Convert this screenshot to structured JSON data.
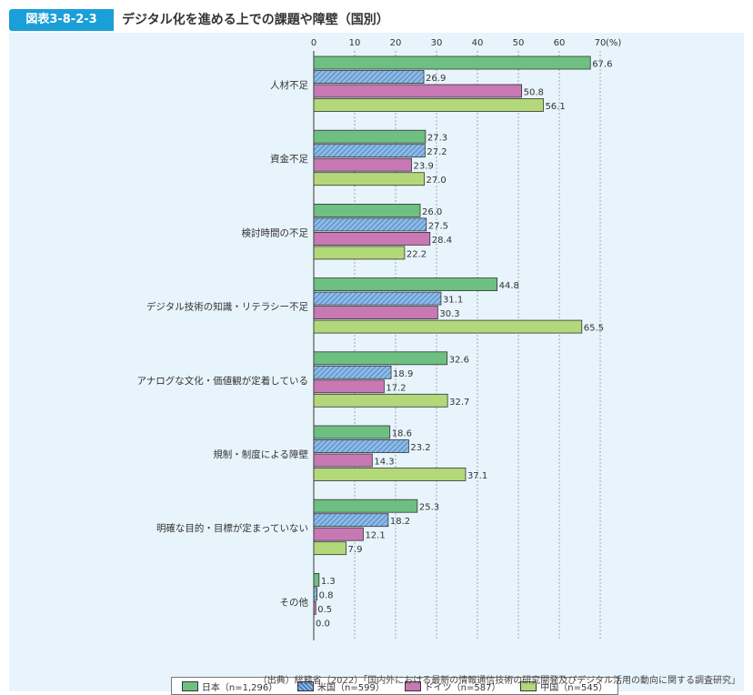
{
  "header": {
    "figure_label": "図表3-8-2-3",
    "title": "デジタル化を進める上での課題や障壁（国別）"
  },
  "chart_data": {
    "type": "bar",
    "orientation": "horizontal",
    "unit_label": "(%)",
    "xlim": [
      0,
      70
    ],
    "xticks": [
      0,
      10,
      20,
      30,
      40,
      50,
      60,
      70
    ],
    "grid": true,
    "legend_position": "bottom",
    "categories": [
      "人材不足",
      "資金不足",
      "検討時間の不足",
      "デジタル技術の知識・リテラシー不足",
      "アナログな文化・価値観が定着している",
      "規制・制度による障壁",
      "明確な目的・目標が定まっていない",
      "その他"
    ],
    "series": [
      {
        "name": "日本（n=1,296）",
        "color": "#6dc082",
        "pattern": "solid",
        "values": [
          67.6,
          27.3,
          26.0,
          44.8,
          32.6,
          18.6,
          25.3,
          1.3
        ]
      },
      {
        "name": "米国（n=599）",
        "color": "#6fa8dc",
        "pattern": "hatch",
        "values": [
          26.9,
          27.2,
          27.5,
          31.1,
          18.9,
          23.2,
          18.2,
          0.8
        ]
      },
      {
        "name": "ドイツ（n=587）",
        "color": "#c879b3",
        "pattern": "solid",
        "values": [
          50.8,
          23.9,
          28.4,
          30.3,
          17.2,
          14.3,
          12.1,
          0.5
        ]
      },
      {
        "name": "中国（n=545）",
        "color": "#b3d87a",
        "pattern": "solid",
        "values": [
          56.1,
          27.0,
          22.2,
          65.5,
          32.7,
          37.1,
          7.9,
          0.0
        ]
      }
    ]
  },
  "source": "（出典）総務省（2022）「国内外における最新の情報通信技術の研究開発及びデジタル活用の動向に関する調査研究」"
}
